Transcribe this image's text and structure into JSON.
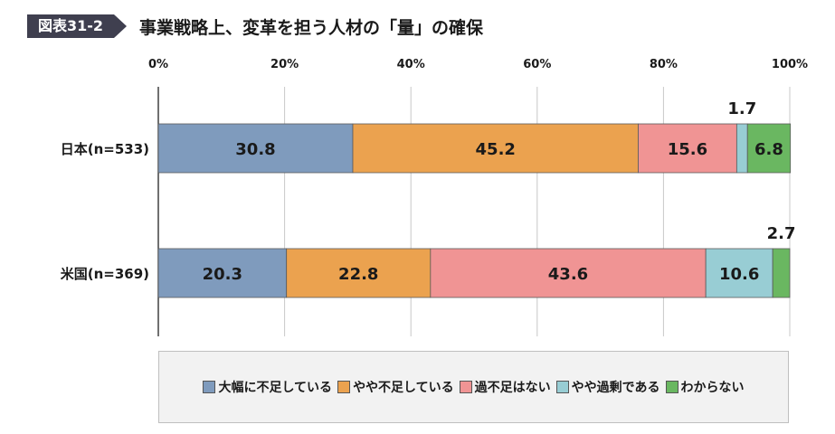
{
  "header": {
    "badge": "図表31-2",
    "title": "事業戦略上、変革を担う人材の「量」の確保"
  },
  "chart_data": {
    "type": "bar",
    "orientation": "horizontal",
    "stacked": true,
    "percent": true,
    "categories": [
      "日本(n=533)",
      "米国(n=369)"
    ],
    "xlim": [
      0,
      100
    ],
    "ticks": [
      "0%",
      "20%",
      "40%",
      "60%",
      "80%",
      "100%"
    ],
    "grid": true,
    "legend_position": "bottom",
    "series": [
      {
        "name": "大幅に不足している",
        "color": "#7f9bbd",
        "values": [
          30.8,
          20.3
        ],
        "labels": [
          "30.8",
          "20.3"
        ]
      },
      {
        "name": "やや不足している",
        "color": "#eba24f",
        "values": [
          45.2,
          22.8
        ],
        "labels": [
          "45.2",
          "22.8"
        ]
      },
      {
        "name": "過不足はない",
        "color": "#f09494",
        "values": [
          15.6,
          43.6
        ],
        "labels": [
          "15.6",
          "43.6"
        ]
      },
      {
        "name": "やや過剰である",
        "color": "#98cdd4",
        "values": [
          1.7,
          10.6
        ],
        "labels": [
          "1.7",
          "10.6"
        ]
      },
      {
        "name": "わからない",
        "color": "#6ab761",
        "values": [
          6.8,
          2.7
        ],
        "labels": [
          "6.8",
          "2.7"
        ]
      }
    ]
  }
}
